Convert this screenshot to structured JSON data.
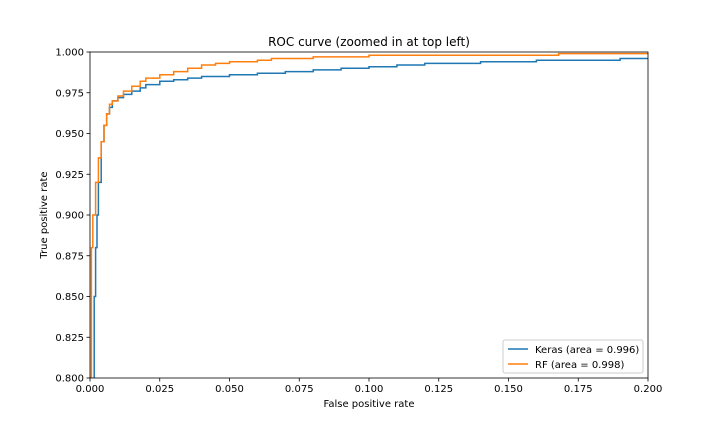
{
  "chart_data": {
    "type": "line",
    "title": "ROC curve (zoomed in at top left)",
    "xlabel": "False positive rate",
    "ylabel": "True positive rate",
    "xlim": [
      0.0,
      0.2
    ],
    "ylim": [
      0.8,
      1.0
    ],
    "xticks": [
      "0.000",
      "0.025",
      "0.050",
      "0.075",
      "0.100",
      "0.125",
      "0.150",
      "0.175",
      "0.200"
    ],
    "yticks": [
      "0.800",
      "0.825",
      "0.850",
      "0.875",
      "0.900",
      "0.925",
      "0.950",
      "0.975",
      "1.000"
    ],
    "legend_position": "lower-right",
    "grid": false,
    "series": [
      {
        "name": "Keras (area = 0.996)",
        "color": "#1f77b4",
        "x": [
          0.0015,
          0.0015,
          0.002,
          0.0025,
          0.003,
          0.004,
          0.005,
          0.006,
          0.007,
          0.008,
          0.01,
          0.012,
          0.015,
          0.018,
          0.02,
          0.025,
          0.03,
          0.035,
          0.04,
          0.05,
          0.06,
          0.07,
          0.08,
          0.09,
          0.1,
          0.11,
          0.12,
          0.13,
          0.14,
          0.15,
          0.16,
          0.17,
          0.18,
          0.19,
          0.2
        ],
        "y": [
          0.8,
          0.85,
          0.88,
          0.9,
          0.92,
          0.945,
          0.955,
          0.962,
          0.966,
          0.97,
          0.972,
          0.974,
          0.976,
          0.978,
          0.98,
          0.982,
          0.983,
          0.984,
          0.985,
          0.986,
          0.987,
          0.988,
          0.989,
          0.99,
          0.991,
          0.992,
          0.993,
          0.993,
          0.994,
          0.994,
          0.995,
          0.995,
          0.995,
          0.996,
          0.996
        ]
      },
      {
        "name": "RF (area = 0.998)",
        "color": "#ff7f0e",
        "x": [
          0.0,
          0.0005,
          0.001,
          0.002,
          0.003,
          0.004,
          0.005,
          0.006,
          0.007,
          0.008,
          0.01,
          0.012,
          0.015,
          0.018,
          0.02,
          0.025,
          0.03,
          0.035,
          0.04,
          0.045,
          0.05,
          0.06,
          0.065,
          0.075,
          0.08,
          0.09,
          0.1,
          0.11,
          0.125,
          0.15,
          0.167,
          0.168,
          0.2
        ],
        "y": [
          0.8,
          0.88,
          0.9,
          0.92,
          0.935,
          0.945,
          0.955,
          0.962,
          0.968,
          0.97,
          0.973,
          0.976,
          0.979,
          0.982,
          0.984,
          0.986,
          0.988,
          0.99,
          0.992,
          0.993,
          0.994,
          0.995,
          0.996,
          0.996,
          0.997,
          0.997,
          0.998,
          0.998,
          0.998,
          0.998,
          0.998,
          0.999,
          0.999
        ]
      }
    ]
  }
}
